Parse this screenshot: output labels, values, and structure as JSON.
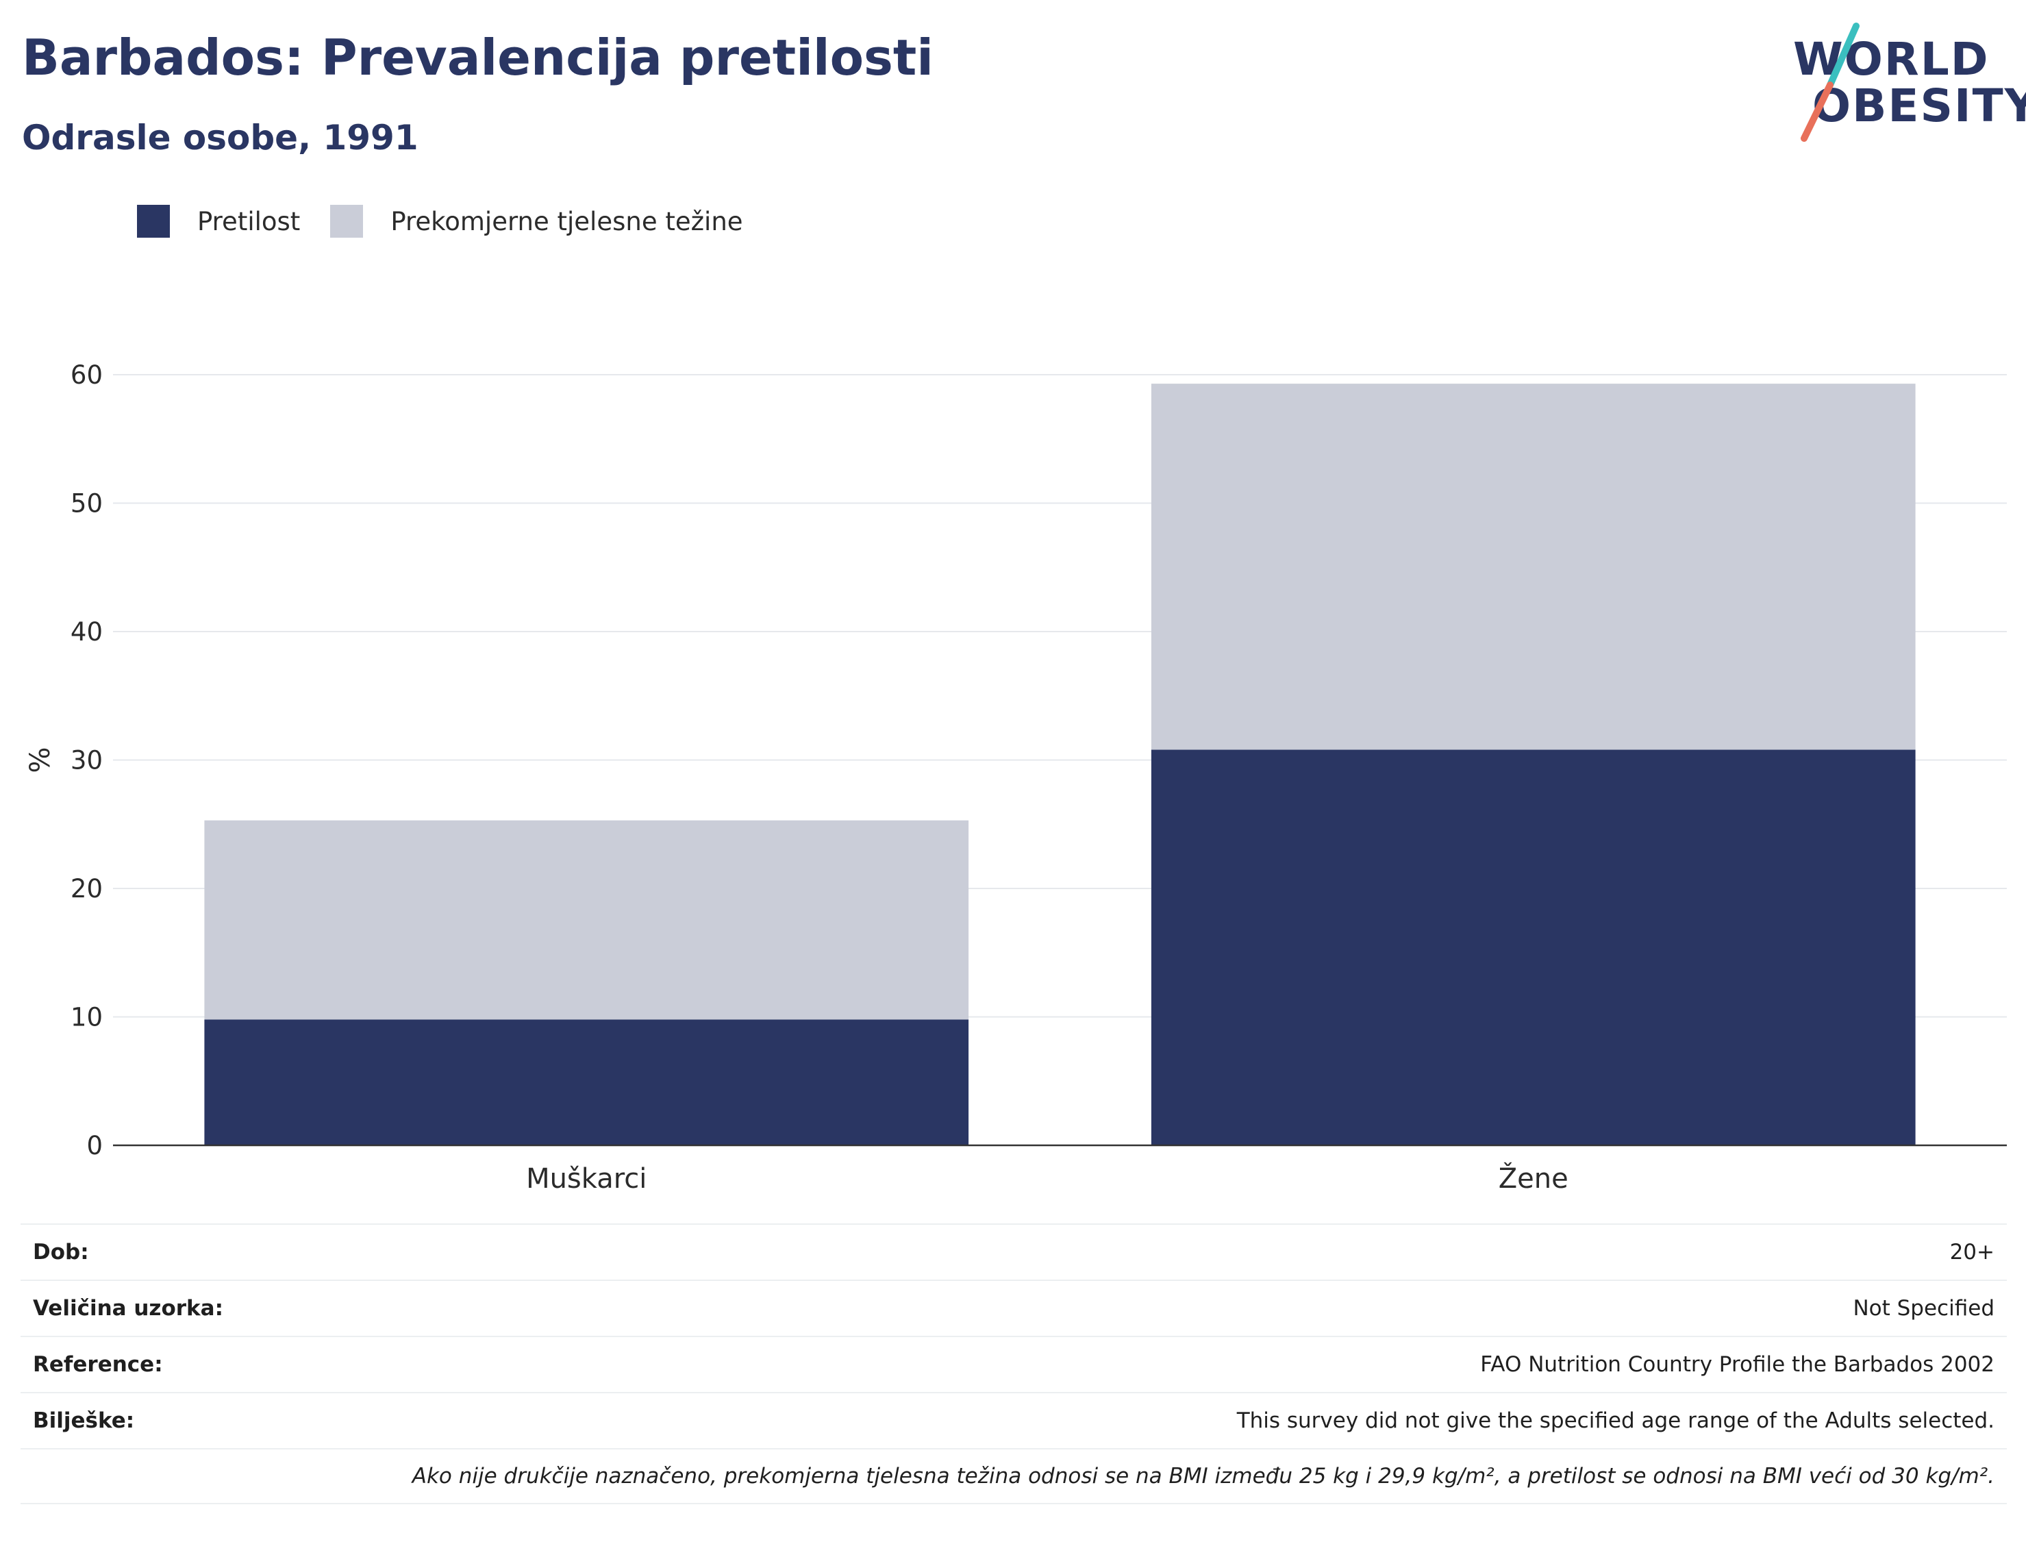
{
  "header": {
    "title": "Barbados: Prevalencija pretilosti",
    "subtitle": "Odrasle osobe, 1991"
  },
  "logo": {
    "line1": "WORLD",
    "line2": "OBESITY",
    "accent_teal": "#3bbfbf",
    "accent_coral": "#e8705a"
  },
  "legend": {
    "items": [
      {
        "label": "Pretilost",
        "color": "#2a3663"
      },
      {
        "label": "Prekomjerne tjelesne težine",
        "color": "#cacdd8"
      }
    ]
  },
  "chart_data": {
    "type": "bar",
    "stacked": true,
    "categories": [
      "Muškarci",
      "Žene"
    ],
    "series": [
      {
        "name": "Pretilost",
        "values": [
          9.8,
          30.8
        ],
        "color": "#2a3663"
      },
      {
        "name": "Prekomjerne tjelesne težine",
        "values": [
          15.5,
          28.5
        ],
        "color": "#cacdd8"
      }
    ],
    "ylabel": "%",
    "ylim": [
      0,
      60
    ],
    "yticks": [
      0,
      10,
      20,
      30,
      40,
      50,
      60
    ],
    "grid": true,
    "legend_position": "top-left"
  },
  "info": {
    "rows": [
      {
        "key": "Dob:",
        "value": "20+"
      },
      {
        "key": "Veličina uzorka:",
        "value": "Not Specified"
      },
      {
        "key": "Reference:",
        "value": "FAO Nutrition Country Profile the Barbados 2002"
      },
      {
        "key": "Bilješke:",
        "value": "This survey did not give the specified age range of the Adults selected."
      }
    ],
    "note": "Ako nije drukčije naznačeno, prekomjerna tjelesna težina odnosi se na BMI između 25 kg i 29,9 kg/m², a pretilost se odnosi na BMI veći od 30 kg/m²."
  }
}
